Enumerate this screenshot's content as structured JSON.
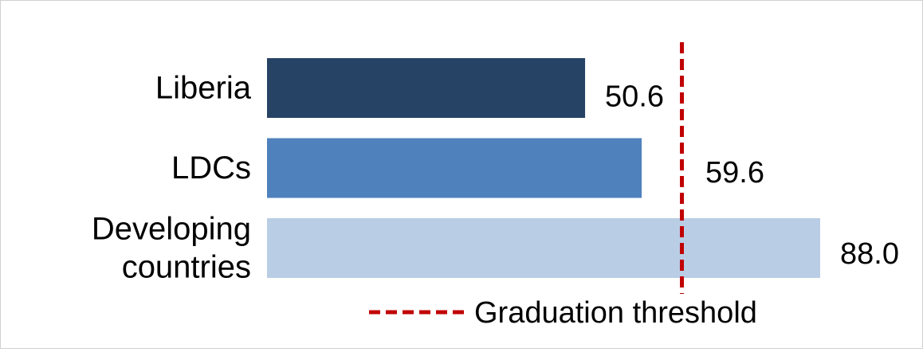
{
  "chart_data": {
    "type": "bar",
    "orientation": "horizontal",
    "categories": [
      "Liberia",
      "LDCs",
      "Developing countries"
    ],
    "category_lines": [
      [
        "Liberia"
      ],
      [
        "LDCs"
      ],
      [
        "Developing",
        "countries"
      ]
    ],
    "values": [
      50.6,
      59.6,
      88.0
    ],
    "value_labels": [
      "50.6",
      "59.6",
      "88.0"
    ],
    "colors": [
      "#264264",
      "#4f81bd",
      "#b9cde5"
    ],
    "reference_line": {
      "value": 66,
      "label": "Graduation threshold",
      "color": "#c00000",
      "style": "dashed"
    },
    "xlim": [
      0,
      88.0
    ],
    "grid": false,
    "legend": "bottom",
    "title": "",
    "xlabel": "",
    "ylabel": ""
  }
}
